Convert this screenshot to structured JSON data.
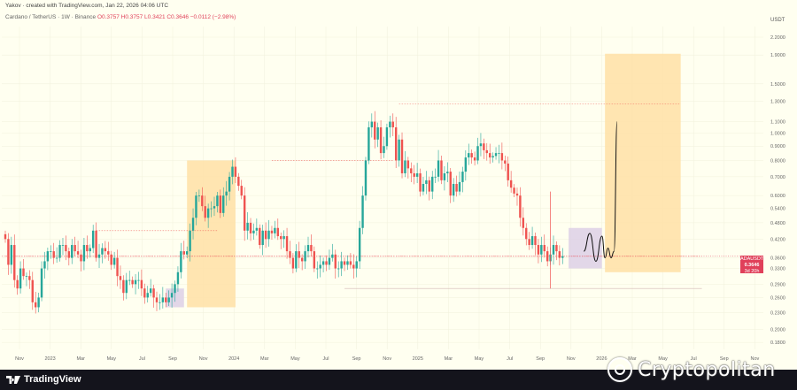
{
  "header": {
    "creator_line": "Yakov · created with TradingView.com, Jan 22, 2026 04:06 UTC",
    "symbol_line": "Cardano / TetherUS · 1W · Binance",
    "ohlc_line": "O0.3757 H0.3757 L0.3421 C0.3646 −0.0112 (−2.98%)"
  },
  "price_axis": {
    "unit": "USDT",
    "ticks": [
      "2.2000",
      "1.9000",
      "1.5000",
      "1.3000",
      "1.1000",
      "1.0000",
      "0.9000",
      "0.8000",
      "0.7000",
      "0.6000",
      "0.5400",
      "0.4800",
      "0.4200",
      "0.3600",
      "0.3300",
      "0.2900",
      "0.2600",
      "0.2300",
      "0.2000",
      "0.1800"
    ]
  },
  "time_axis": {
    "ticks": [
      "Nov",
      "2023",
      "Mar",
      "May",
      "Jul",
      "Sep",
      "Nov",
      "2024",
      "Mar",
      "May",
      "Jul",
      "Sep",
      "Nov",
      "2025",
      "Mar",
      "May",
      "Jul",
      "Sep",
      "Nov",
      "2026",
      "Mar",
      "May",
      "Jul",
      "Sep",
      "Nov"
    ]
  },
  "price_tag": {
    "symbol": "ADAUSDT",
    "price": "0.3646",
    "countdown": "3d 20h"
  },
  "footer": {
    "brand": "TradingView"
  },
  "watermark": {
    "text": "Cryptopolitan"
  },
  "colors": {
    "up": "#26a69a",
    "down": "#ef5350",
    "box_orange": "#ffe0a6",
    "box_purple": "#ddd0e6",
    "dotted": "#ef5350",
    "background": "#fffff0"
  },
  "chart_data": {
    "type": "candlestick",
    "title": "Cardano / TetherUS · 1W · Binance",
    "scale": "log",
    "ylim": [
      0.17,
      2.4
    ],
    "last_close": 0.3646,
    "closes": [
      0.42,
      0.34,
      0.4,
      0.3,
      0.28,
      0.33,
      0.31,
      0.31,
      0.3,
      0.25,
      0.24,
      0.26,
      0.33,
      0.35,
      0.38,
      0.38,
      0.36,
      0.36,
      0.4,
      0.4,
      0.38,
      0.36,
      0.4,
      0.38,
      0.37,
      0.35,
      0.4,
      0.38,
      0.39,
      0.45,
      0.36,
      0.37,
      0.39,
      0.38,
      0.37,
      0.34,
      0.36,
      0.31,
      0.3,
      0.27,
      0.3,
      0.3,
      0.29,
      0.3,
      0.3,
      0.28,
      0.26,
      0.27,
      0.28,
      0.26,
      0.25,
      0.25,
      0.26,
      0.25,
      0.26,
      0.27,
      0.29,
      0.32,
      0.38,
      0.37,
      0.38,
      0.45,
      0.5,
      0.6,
      0.6,
      0.55,
      0.5,
      0.54,
      0.54,
      0.55,
      0.6,
      0.52,
      0.6,
      0.62,
      0.7,
      0.76,
      0.7,
      0.65,
      0.6,
      0.45,
      0.48,
      0.44,
      0.45,
      0.46,
      0.4,
      0.45,
      0.42,
      0.45,
      0.44,
      0.46,
      0.43,
      0.42,
      0.43,
      0.38,
      0.36,
      0.33,
      0.38,
      0.36,
      0.35,
      0.38,
      0.4,
      0.38,
      0.33,
      0.33,
      0.34,
      0.35,
      0.34,
      0.36,
      0.37,
      0.33,
      0.33,
      0.35,
      0.34,
      0.35,
      0.34,
      0.33,
      0.35,
      0.46,
      0.6,
      0.8,
      1.05,
      1.1,
      0.95,
      1.05,
      0.85,
      0.9,
      1.05,
      1.1,
      1.05,
      0.8,
      0.95,
      0.72,
      0.8,
      0.75,
      0.72,
      0.7,
      0.72,
      0.62,
      0.66,
      0.68,
      0.62,
      0.7,
      0.7,
      0.8,
      0.68,
      0.72,
      0.73,
      0.6,
      0.66,
      0.62,
      0.67,
      0.73,
      0.82,
      0.85,
      0.82,
      0.8,
      0.9,
      0.92,
      0.87,
      0.85,
      0.82,
      0.83,
      0.85,
      0.85,
      0.8,
      0.78,
      0.68,
      0.64,
      0.61,
      0.6,
      0.5,
      0.46,
      0.42,
      0.4,
      0.43,
      0.4,
      0.37,
      0.4,
      0.38,
      0.35,
      0.37,
      0.4,
      0.38,
      0.36,
      0.3646
    ],
    "levels": [
      1.27,
      0.8,
      0.45,
      0.3646,
      0.28
    ],
    "boxes": [
      {
        "kind": "accumulation",
        "from_week": 53,
        "to_week": 59,
        "price_low": 0.24,
        "price_high": 0.28
      },
      {
        "kind": "rally",
        "from_week": 60,
        "to_week": 76,
        "price_low": 0.24,
        "price_high": 0.8
      },
      {
        "kind": "accumulation",
        "from_week": 186,
        "to_week": 197,
        "price_low": 0.33,
        "price_high": 0.46
      },
      {
        "kind": "rally",
        "from_week": 198,
        "to_week": 223,
        "price_low": 0.32,
        "price_high": 1.92
      }
    ],
    "projection": [
      [
        191,
        0.38
      ],
      [
        193,
        0.44
      ],
      [
        195,
        0.35
      ],
      [
        197,
        0.43
      ],
      [
        198,
        0.36
      ],
      [
        199,
        0.39
      ],
      [
        200,
        0.36
      ],
      [
        201,
        0.38
      ],
      [
        202,
        1.1
      ]
    ]
  }
}
